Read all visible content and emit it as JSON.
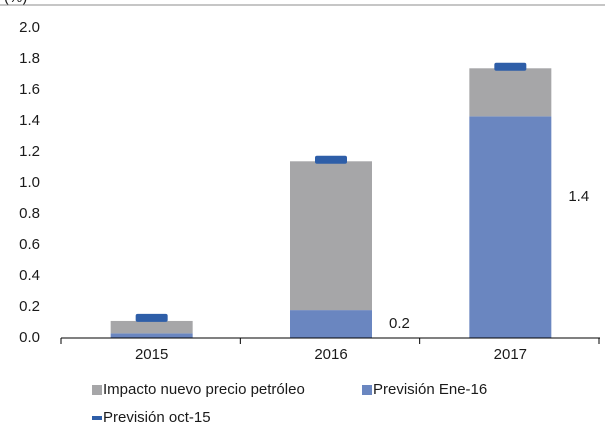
{
  "chart_data": {
    "type": "stacked_bar",
    "ylabel": "(%)",
    "categories": [
      "2015",
      "2016",
      "2017"
    ],
    "series": [
      {
        "name": "Previsión Ene-16",
        "color": "#6a86c0",
        "values": [
          0.03,
          0.18,
          1.43
        ],
        "value_labels": [
          null,
          "0.2",
          "1.4"
        ]
      },
      {
        "name": "Impacto nuevo precio petróleo",
        "color": "#a6a6a8",
        "values": [
          0.08,
          0.96,
          0.31
        ]
      },
      {
        "name": "Previsión oct-15",
        "color": "#2e5ea8",
        "kind": "marker",
        "values": [
          0.13,
          1.15,
          1.75
        ]
      }
    ],
    "legend_order": [
      1,
      0,
      2
    ],
    "ylim": [
      0,
      2.0
    ],
    "yticks": [
      {
        "value": 0,
        "label": "0.0"
      },
      0.2,
      0.4,
      0.6,
      0.8,
      {
        "value": 1,
        "label": "1.0"
      },
      1.2,
      1.4,
      1.6,
      1.8,
      {
        "value": 2,
        "label": "2.0"
      }
    ]
  }
}
